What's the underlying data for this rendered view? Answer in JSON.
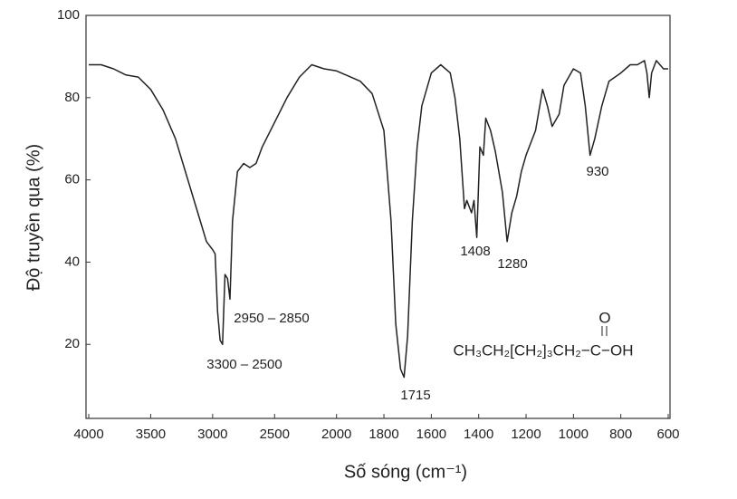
{
  "chart_data": {
    "type": "line",
    "x_label": "Số sóng (cm⁻¹)",
    "y_label": "Độ truyền qua (%)",
    "x": [
      4000,
      3900,
      3800,
      3700,
      3600,
      3500,
      3400,
      3300,
      3200,
      3100,
      3050,
      3000,
      2980,
      2960,
      2940,
      2920,
      2900,
      2880,
      2860,
      2840,
      2800,
      2750,
      2700,
      2650,
      2600,
      2500,
      2400,
      2300,
      2200,
      2100,
      2000,
      1900,
      1850,
      1800,
      1770,
      1750,
      1730,
      1715,
      1700,
      1680,
      1660,
      1640,
      1600,
      1560,
      1520,
      1500,
      1480,
      1460,
      1450,
      1430,
      1420,
      1408,
      1395,
      1380,
      1370,
      1350,
      1330,
      1300,
      1280,
      1260,
      1240,
      1220,
      1200,
      1160,
      1130,
      1110,
      1090,
      1060,
      1040,
      1000,
      970,
      950,
      930,
      910,
      880,
      850,
      800,
      760,
      730,
      700,
      690,
      680,
      670,
      650,
      620,
      600
    ],
    "series": [
      {
        "color": "#222222",
        "values": [
          88,
          88,
          87,
          85.5,
          85,
          82,
          77,
          70,
          60,
          50,
          45,
          43,
          42,
          28,
          21,
          20,
          37,
          36,
          31,
          50,
          62,
          64,
          63,
          64,
          68,
          74,
          80,
          85,
          88,
          87,
          86.5,
          84,
          81,
          72,
          50,
          25,
          14,
          12,
          22,
          50,
          68,
          78,
          86,
          88,
          86,
          80,
          70,
          53,
          55,
          52,
          55,
          46,
          68,
          66,
          75,
          72,
          67,
          57,
          45,
          52,
          56,
          62,
          66,
          72,
          82,
          78,
          73,
          76,
          83,
          87,
          86,
          78,
          66,
          70,
          78,
          84,
          86,
          88,
          88,
          89,
          86,
          80,
          86,
          89,
          87,
          87
        ]
      }
    ],
    "xlim": [
      4000,
      600
    ],
    "xticks": [
      4000,
      3500,
      3000,
      2500,
      2000,
      1800,
      1600,
      1400,
      1200,
      1000,
      800,
      600
    ],
    "ylim": [
      2,
      100
    ],
    "yticks": [
      20,
      40,
      60,
      80,
      100
    ],
    "grid": false,
    "annotations": [
      "3300 – 2500",
      "2950 – 2850",
      "1715",
      "1408",
      "1280",
      "930"
    ],
    "formula": {
      "main": "CH₃CH₂[CH₂]₃CH₂−C−OH",
      "top": "O"
    }
  }
}
